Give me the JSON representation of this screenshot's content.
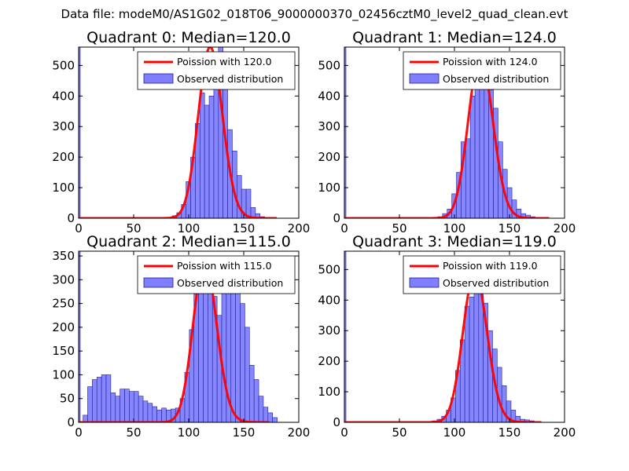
{
  "figure": {
    "suptitle": "Data file: modeM0/AS1G02_018T06_9000000370_02456cztM0_level2_quad_clean.evt",
    "line_color": "#ff0000",
    "bar_fill": "#7f7fff",
    "bar_edge": "#20209a"
  },
  "chart_data": [
    {
      "type": "bar",
      "title": "Quadrant 0: Median=120.0",
      "median": 120.0,
      "xlim": [
        0,
        200
      ],
      "ylim": [
        0,
        560
      ],
      "xticks": [
        "0",
        "50",
        "100",
        "150",
        "200"
      ],
      "yticks": [
        "0",
        "100",
        "200",
        "300",
        "400",
        "500"
      ],
      "legend": [
        "Poission with 120.0",
        "Observed distribution"
      ],
      "legend_loc": "upper right",
      "spike": {
        "x": 0,
        "value": 560
      },
      "bins": {
        "start": 85,
        "width": 4.2,
        "values": [
          8,
          18,
          45,
          120,
          200,
          310,
          410,
          370,
          400,
          480,
          560,
          430,
          290,
          220,
          140,
          95,
          95,
          35,
          15,
          5
        ]
      }
    },
    {
      "type": "bar",
      "title": "Quadrant 1: Median=124.0",
      "median": 124.0,
      "xlim": [
        0,
        200
      ],
      "ylim": [
        0,
        560
      ],
      "xticks": [
        "0",
        "50",
        "100",
        "150",
        "200"
      ],
      "yticks": [
        "0",
        "100",
        "200",
        "300",
        "400",
        "500"
      ],
      "legend": [
        "Poission with 124.0",
        "Observed distribution"
      ],
      "legend_loc": "upper right",
      "spike": {
        "x": 0,
        "value": 560
      },
      "bins": {
        "start": 85,
        "width": 4.2,
        "values": [
          5,
          15,
          30,
          80,
          150,
          250,
          260,
          400,
          490,
          530,
          500,
          420,
          360,
          250,
          160,
          100,
          60,
          30,
          15,
          10,
          5
        ]
      }
    },
    {
      "type": "bar",
      "title": "Quadrant 2: Median=115.0",
      "median": 115.0,
      "xlim": [
        0,
        200
      ],
      "ylim": [
        0,
        360
      ],
      "xticks": [
        "0",
        "50",
        "100",
        "150",
        "200"
      ],
      "yticks": [
        "0",
        "50",
        "100",
        "150",
        "200",
        "250",
        "300",
        "350"
      ],
      "legend": [
        "Poission with 115.0",
        "Observed distribution"
      ],
      "legend_loc": "upper right",
      "spike": {
        "x": 0,
        "value": 360
      },
      "bins": {
        "start": 4,
        "width": 4.2,
        "values": [
          15,
          75,
          90,
          95,
          100,
          100,
          62,
          55,
          70,
          70,
          65,
          65,
          55,
          45,
          40,
          33,
          26,
          30,
          26,
          28,
          30,
          50,
          105,
          195,
          270,
          300,
          340,
          310,
          265,
          225,
          285,
          330,
          340,
          290,
          250,
          200,
          120,
          90,
          55,
          32,
          20,
          10
        ]
      }
    },
    {
      "type": "bar",
      "title": "Quadrant 3: Median=119.0",
      "median": 119.0,
      "xlim": [
        0,
        200
      ],
      "ylim": [
        0,
        560
      ],
      "xticks": [
        "0",
        "50",
        "100",
        "150",
        "200"
      ],
      "yticks": [
        "0",
        "100",
        "200",
        "300",
        "400",
        "500"
      ],
      "legend": [
        "Poission with 119.0",
        "Observed distribution"
      ],
      "legend_loc": "upper right",
      "spike": {
        "x": 0,
        "value": 560
      },
      "bins": {
        "start": 80,
        "width": 4.2,
        "values": [
          5,
          10,
          20,
          40,
          80,
          170,
          270,
          380,
          410,
          490,
          470,
          390,
          300,
          240,
          180,
          120,
          70,
          40,
          20,
          10,
          8,
          5
        ]
      }
    }
  ]
}
